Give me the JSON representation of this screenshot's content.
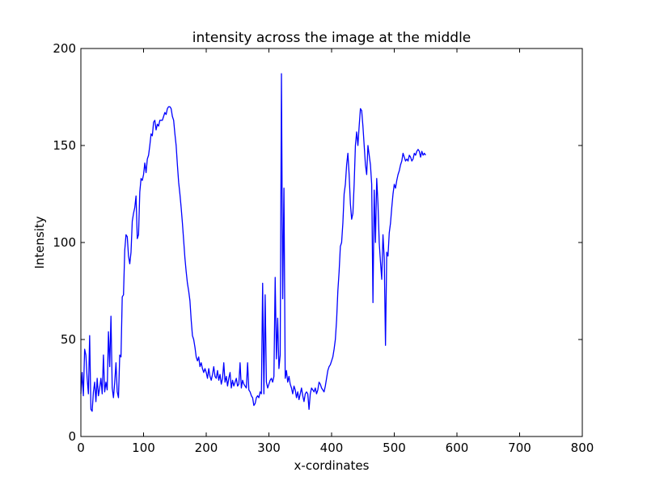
{
  "chart_data": {
    "type": "line",
    "title": "intensity across the image at the middle",
    "xlabel": "x-cordinates",
    "ylabel": "Intensity",
    "xlim": [
      0,
      800
    ],
    "ylim": [
      0,
      200
    ],
    "xticks": [
      0,
      100,
      200,
      300,
      400,
      500,
      600,
      700,
      800
    ],
    "yticks": [
      0,
      50,
      100,
      150,
      200
    ],
    "grid": false,
    "series": [
      {
        "color": "#0000ff",
        "points": [
          [
            0,
            22
          ],
          [
            2,
            33
          ],
          [
            4,
            21
          ],
          [
            6,
            45
          ],
          [
            8,
            42
          ],
          [
            10,
            30
          ],
          [
            12,
            22
          ],
          [
            14,
            52
          ],
          [
            16,
            14
          ],
          [
            18,
            13
          ],
          [
            20,
            23
          ],
          [
            22,
            28
          ],
          [
            24,
            18
          ],
          [
            26,
            30
          ],
          [
            28,
            21
          ],
          [
            30,
            25
          ],
          [
            32,
            30
          ],
          [
            34,
            22
          ],
          [
            36,
            42
          ],
          [
            38,
            23
          ],
          [
            40,
            28
          ],
          [
            42,
            24
          ],
          [
            44,
            54
          ],
          [
            46,
            36
          ],
          [
            48,
            62
          ],
          [
            50,
            25
          ],
          [
            52,
            20
          ],
          [
            54,
            28
          ],
          [
            56,
            38
          ],
          [
            58,
            23
          ],
          [
            60,
            20
          ],
          [
            62,
            42
          ],
          [
            64,
            41
          ],
          [
            66,
            72
          ],
          [
            68,
            73
          ],
          [
            70,
            96
          ],
          [
            72,
            104
          ],
          [
            74,
            103
          ],
          [
            76,
            93
          ],
          [
            78,
            89
          ],
          [
            80,
            95
          ],
          [
            82,
            111
          ],
          [
            84,
            115
          ],
          [
            86,
            118
          ],
          [
            88,
            124
          ],
          [
            90,
            102
          ],
          [
            92,
            104
          ],
          [
            94,
            126
          ],
          [
            96,
            133
          ],
          [
            98,
            132
          ],
          [
            100,
            135
          ],
          [
            102,
            141
          ],
          [
            104,
            136
          ],
          [
            106,
            143
          ],
          [
            108,
            145
          ],
          [
            110,
            150
          ],
          [
            112,
            156
          ],
          [
            114,
            155
          ],
          [
            116,
            162
          ],
          [
            118,
            163
          ],
          [
            120,
            158
          ],
          [
            122,
            161
          ],
          [
            124,
            160
          ],
          [
            126,
            163
          ],
          [
            128,
            163
          ],
          [
            130,
            163
          ],
          [
            132,
            165
          ],
          [
            134,
            167
          ],
          [
            136,
            166
          ],
          [
            138,
            169
          ],
          [
            140,
            170
          ],
          [
            142,
            170
          ],
          [
            144,
            169
          ],
          [
            146,
            165
          ],
          [
            148,
            163
          ],
          [
            150,
            156
          ],
          [
            152,
            150
          ],
          [
            154,
            140
          ],
          [
            156,
            131
          ],
          [
            158,
            125
          ],
          [
            160,
            118
          ],
          [
            162,
            110
          ],
          [
            164,
            101
          ],
          [
            166,
            92
          ],
          [
            168,
            85
          ],
          [
            170,
            79
          ],
          [
            172,
            75
          ],
          [
            174,
            70
          ],
          [
            176,
            60
          ],
          [
            178,
            52
          ],
          [
            180,
            50
          ],
          [
            182,
            46
          ],
          [
            184,
            41
          ],
          [
            186,
            39
          ],
          [
            188,
            41
          ],
          [
            190,
            36
          ],
          [
            192,
            38
          ],
          [
            194,
            35
          ],
          [
            196,
            33
          ],
          [
            198,
            35
          ],
          [
            200,
            33
          ],
          [
            202,
            30
          ],
          [
            204,
            35
          ],
          [
            206,
            31
          ],
          [
            208,
            29
          ],
          [
            210,
            32
          ],
          [
            212,
            36
          ],
          [
            214,
            31
          ],
          [
            216,
            30
          ],
          [
            218,
            34
          ],
          [
            220,
            29
          ],
          [
            222,
            32
          ],
          [
            224,
            27
          ],
          [
            226,
            30
          ],
          [
            228,
            38
          ],
          [
            230,
            28
          ],
          [
            232,
            31
          ],
          [
            234,
            26
          ],
          [
            236,
            30
          ],
          [
            238,
            33
          ],
          [
            240,
            25
          ],
          [
            242,
            29
          ],
          [
            244,
            26
          ],
          [
            246,
            28
          ],
          [
            248,
            30
          ],
          [
            250,
            26
          ],
          [
            252,
            27
          ],
          [
            254,
            38
          ],
          [
            256,
            25
          ],
          [
            258,
            29
          ],
          [
            260,
            27
          ],
          [
            262,
            26
          ],
          [
            264,
            25
          ],
          [
            266,
            38
          ],
          [
            268,
            24
          ],
          [
            270,
            23
          ],
          [
            272,
            21
          ],
          [
            274,
            20
          ],
          [
            276,
            16
          ],
          [
            278,
            17
          ],
          [
            280,
            20
          ],
          [
            282,
            21
          ],
          [
            284,
            20
          ],
          [
            286,
            23
          ],
          [
            288,
            22
          ],
          [
            290,
            79
          ],
          [
            292,
            22
          ],
          [
            294,
            73
          ],
          [
            296,
            28
          ],
          [
            298,
            25
          ],
          [
            300,
            27
          ],
          [
            302,
            29
          ],
          [
            304,
            30
          ],
          [
            306,
            28
          ],
          [
            308,
            31
          ],
          [
            310,
            82
          ],
          [
            312,
            40
          ],
          [
            314,
            61
          ],
          [
            316,
            35
          ],
          [
            318,
            42
          ],
          [
            320,
            187
          ],
          [
            322,
            71
          ],
          [
            324,
            128
          ],
          [
            326,
            30
          ],
          [
            328,
            34
          ],
          [
            330,
            28
          ],
          [
            332,
            31
          ],
          [
            334,
            27
          ],
          [
            336,
            25
          ],
          [
            338,
            22
          ],
          [
            340,
            26
          ],
          [
            342,
            24
          ],
          [
            344,
            20
          ],
          [
            346,
            23
          ],
          [
            348,
            19
          ],
          [
            350,
            22
          ],
          [
            352,
            25
          ],
          [
            354,
            21
          ],
          [
            356,
            18
          ],
          [
            358,
            22
          ],
          [
            360,
            23
          ],
          [
            362,
            22
          ],
          [
            364,
            14
          ],
          [
            366,
            22
          ],
          [
            368,
            25
          ],
          [
            370,
            24
          ],
          [
            372,
            23
          ],
          [
            374,
            25
          ],
          [
            376,
            22
          ],
          [
            378,
            24
          ],
          [
            380,
            28
          ],
          [
            382,
            27
          ],
          [
            384,
            25
          ],
          [
            386,
            24
          ],
          [
            388,
            23
          ],
          [
            390,
            26
          ],
          [
            392,
            30
          ],
          [
            394,
            34
          ],
          [
            396,
            36
          ],
          [
            398,
            37
          ],
          [
            400,
            39
          ],
          [
            402,
            41
          ],
          [
            404,
            45
          ],
          [
            406,
            50
          ],
          [
            408,
            60
          ],
          [
            410,
            75
          ],
          [
            412,
            85
          ],
          [
            414,
            98
          ],
          [
            416,
            100
          ],
          [
            418,
            110
          ],
          [
            420,
            125
          ],
          [
            422,
            130
          ],
          [
            424,
            140
          ],
          [
            426,
            146
          ],
          [
            428,
            135
          ],
          [
            430,
            120
          ],
          [
            432,
            112
          ],
          [
            434,
            115
          ],
          [
            436,
            130
          ],
          [
            438,
            150
          ],
          [
            440,
            157
          ],
          [
            442,
            150
          ],
          [
            444,
            160
          ],
          [
            446,
            169
          ],
          [
            448,
            168
          ],
          [
            450,
            160
          ],
          [
            452,
            150
          ],
          [
            454,
            140
          ],
          [
            456,
            135
          ],
          [
            458,
            150
          ],
          [
            460,
            145
          ],
          [
            462,
            140
          ],
          [
            464,
            130
          ],
          [
            466,
            69
          ],
          [
            468,
            127
          ],
          [
            470,
            100
          ],
          [
            472,
            133
          ],
          [
            474,
            120
          ],
          [
            476,
            100
          ],
          [
            478,
            90
          ],
          [
            480,
            81
          ],
          [
            482,
            104
          ],
          [
            484,
            92
          ],
          [
            486,
            47
          ],
          [
            488,
            95
          ],
          [
            490,
            93
          ],
          [
            492,
            105
          ],
          [
            494,
            110
          ],
          [
            496,
            118
          ],
          [
            498,
            125
          ],
          [
            500,
            130
          ],
          [
            502,
            128
          ],
          [
            504,
            132
          ],
          [
            506,
            135
          ],
          [
            508,
            137
          ],
          [
            510,
            140
          ],
          [
            512,
            142
          ],
          [
            514,
            146
          ],
          [
            516,
            144
          ],
          [
            518,
            142
          ],
          [
            520,
            143
          ],
          [
            522,
            142
          ],
          [
            524,
            145
          ],
          [
            526,
            144
          ],
          [
            528,
            142
          ],
          [
            530,
            143
          ],
          [
            532,
            146
          ],
          [
            534,
            145
          ],
          [
            536,
            147
          ],
          [
            538,
            148
          ],
          [
            540,
            147
          ],
          [
            542,
            144
          ],
          [
            544,
            147
          ],
          [
            546,
            145
          ],
          [
            548,
            146
          ],
          [
            550,
            145
          ]
        ]
      }
    ]
  }
}
